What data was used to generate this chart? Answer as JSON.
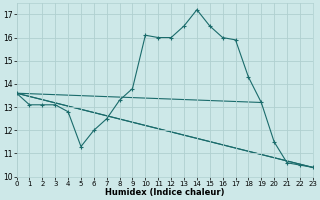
{
  "xlabel": "Humidex (Indice chaleur)",
  "xlim": [
    0,
    23
  ],
  "ylim": [
    10,
    17.5
  ],
  "yticks": [
    10,
    11,
    12,
    13,
    14,
    15,
    16,
    17
  ],
  "xticks": [
    0,
    1,
    2,
    3,
    4,
    5,
    6,
    7,
    8,
    9,
    10,
    11,
    12,
    13,
    14,
    15,
    16,
    17,
    18,
    19,
    20,
    21,
    22,
    23
  ],
  "bg_color": "#cde8e8",
  "line_color": "#1a6b6b",
  "grid_color": "#b0d0d0",
  "main_series": {
    "x": [
      0,
      1,
      2,
      3,
      4,
      5,
      6,
      7,
      8,
      9,
      10,
      11,
      12,
      13,
      14,
      15,
      16,
      17,
      18,
      19,
      20,
      21,
      22,
      23
    ],
    "y": [
      13.6,
      13.1,
      13.1,
      13.1,
      12.8,
      11.3,
      12.0,
      12.5,
      13.3,
      13.8,
      16.1,
      16.0,
      16.0,
      16.5,
      17.2,
      16.5,
      16.0,
      15.9,
      14.3,
      13.2,
      11.5,
      10.6,
      10.5,
      10.4
    ]
  },
  "extra_lines": [
    {
      "x": [
        0,
        19
      ],
      "y": [
        13.6,
        13.2
      ]
    },
    {
      "x": [
        0,
        23
      ],
      "y": [
        13.6,
        10.4
      ]
    },
    {
      "x": [
        0,
        23
      ],
      "y": [
        13.6,
        10.4
      ]
    }
  ]
}
